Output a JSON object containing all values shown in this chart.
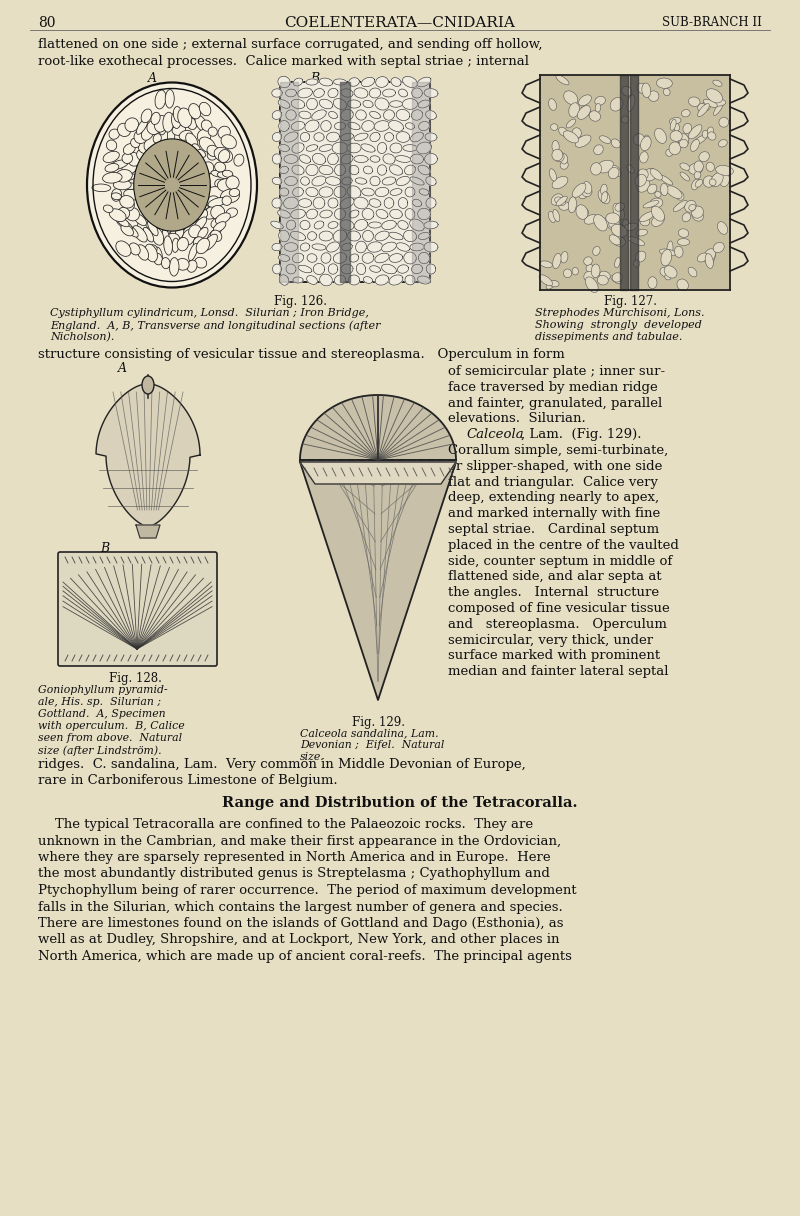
{
  "bg_color": "#e6dfc4",
  "text_color": "#1a1a1a",
  "page_number": "80",
  "header_center": "COELENTERATA—CNIDARIA",
  "header_right": "SUB-BRANCH II",
  "line1": "flattened on one side ; external surface corrugated, and sending off hollow,",
  "line2": "root-like exothecal processes.  Calice marked with septal striae ; internal",
  "label_A_fig126": "A",
  "label_B_fig126": "B",
  "fig126_caption": "Fig. 126.",
  "fig126_text1": "Cystiphyllum cylindricum, Lonsd.  Silurian ; Iron Bridge,",
  "fig126_text2": "England.  A, B, Transverse and longitudinal sections (after",
  "fig126_text3": "Nicholson).",
  "fig127_caption": "Fig. 127.",
  "fig127_text1": "Strephodes Murchisoni, Lons.",
  "fig127_text2": "Showing  strongly  developed",
  "fig127_text3": "dissepiments and tabulae.",
  "structure_line": "structure consisting of vesicular tissue and stereoplasma.   Operculum in form",
  "label_A_fig128": "A",
  "label_B_fig128": "B",
  "right_col_lines": [
    "of semicircular plate ; inner sur-",
    "face traversed by median ridge",
    "and fainter, granulated, parallel",
    "elevations.  Silurian.",
    "    Calceola, Lam.  (Fig. 129).",
    "Corallum simple, semi-turbinate,",
    "or slipper-shaped, with one side",
    "flat and triangular.  Calice very",
    "deep, extending nearly to apex,",
    "and marked internally with fine",
    "septal striae.   Cardinal septum",
    "placed in the centre of the vaulted",
    "side, counter septum in middle of",
    "flattened side, and alar septa at",
    "the angles.   Internal  structure",
    "composed of fine vesicular tissue",
    "and   stereoplasma.   Operculum",
    "semicircular, very thick, under",
    "surface marked with prominent",
    "median and fainter lateral septal"
  ],
  "fig128_caption": "Fig. 128.",
  "fig128_text": [
    "Goniophyllum pyramid-",
    "ale, His. sp.  Silurian ;",
    "Gottland.  A, Specimen",
    "with operculum.  B, Calice",
    "seen from above.  Natural",
    "size (after Lindström)."
  ],
  "fig129_caption": "Fig. 129.",
  "fig129_text": [
    "Calceola sandalina, Lam.",
    "Devonian ;  Eifel.  Natural",
    "size."
  ],
  "ridges_line": "ridges.  C. sandalina, Lam.  Very common in Middle Devonian of Europe,",
  "rare_line": "rare in Carboniferous Limestone of Belgium.",
  "section_title": "Range and Distribution of the Tetracoralla.",
  "body_lines": [
    "    The typical Tetracoralla are confined to the Palaeozoic rocks.  They are",
    "unknown in the Cambrian, and make their first appearance in the Ordovician,",
    "where they are sparsely represented in North America and in Europe.  Here",
    "the most abundantly distributed genus is Streptelasma ; Cyathophyllum and",
    "Ptychophyllum being of rarer occurrence.  The period of maximum development",
    "falls in the Silurian, which contains the largest number of genera and species.",
    "There are limestones found on the islands of Gottland and Dago (Esthonia), as",
    "well as at Dudley, Shropshire, and at Lockport, New York, and other places in",
    "North America, which are made up of ancient coral-reefs.  The principal agents"
  ]
}
